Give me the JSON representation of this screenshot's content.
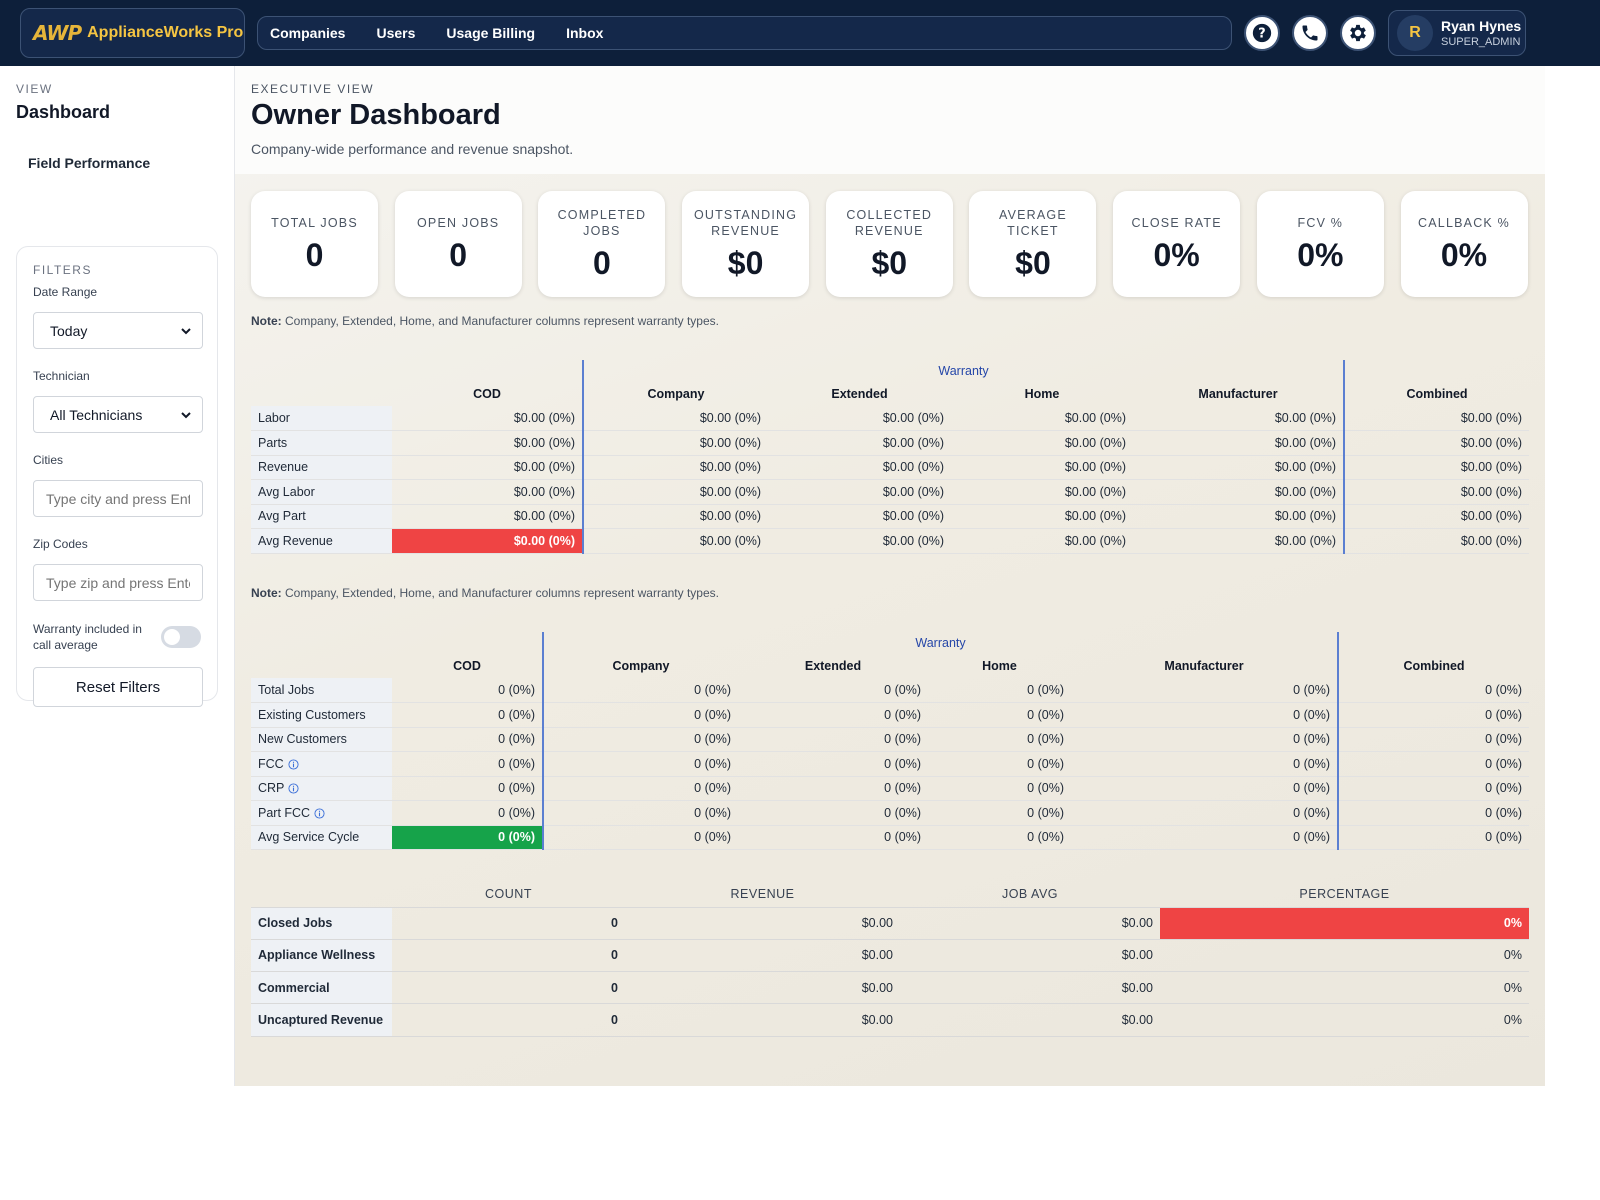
{
  "header": {
    "logo_mark": "AWP",
    "logo_text": "ApplianceWorks Pro",
    "nav": [
      "Companies",
      "Users",
      "Usage Billing",
      "Inbox"
    ],
    "icons": [
      "help-circle-icon",
      "phone-icon",
      "gear-icon"
    ],
    "user": {
      "initial": "R",
      "name": "Ryan Hynes",
      "role": "SUPER_ADMIN"
    }
  },
  "sidebar": {
    "view_label": "VIEW",
    "view_title": "Dashboard",
    "link": "Field Performance",
    "filters": {
      "heading": "FILTERS",
      "date_range_label": "Date Range",
      "date_range_value": "Today",
      "technician_label": "Technician",
      "technician_value": "All Technicians",
      "cities_label": "Cities",
      "cities_placeholder": "Type city and press Enter",
      "zip_label": "Zip Codes",
      "zip_placeholder": "Type zip and press Enter",
      "warranty_toggle_label": "Warranty included in call average",
      "warranty_toggle_on": false,
      "reset_label": "Reset Filters"
    }
  },
  "main": {
    "kicker": "EXECUTIVE VIEW",
    "title": "Owner Dashboard",
    "subtitle": "Company-wide performance and revenue snapshot.",
    "kpis": [
      {
        "label": "TOTAL JOBS",
        "value": "0"
      },
      {
        "label": "OPEN JOBS",
        "value": "0"
      },
      {
        "label": "COMPLETED JOBS",
        "value": "0"
      },
      {
        "label": "OUTSTANDING REVENUE",
        "value": "$0"
      },
      {
        "label": "COLLECTED REVENUE",
        "value": "$0"
      },
      {
        "label": "AVERAGE TICKET",
        "value": "$0"
      },
      {
        "label": "CLOSE RATE",
        "value": "0%"
      },
      {
        "label": "FCV %",
        "value": "0%"
      },
      {
        "label": "CALLBACK %",
        "value": "0%"
      }
    ],
    "note_bold": "Note:",
    "note_text": " Company, Extended, Home, and Manufacturer columns represent warranty types.",
    "warranty_label": "Warranty",
    "columns": [
      "COD",
      "Company",
      "Extended",
      "Home",
      "Manufacturer",
      "Combined"
    ],
    "revenue_table": {
      "rows": [
        {
          "label": "Labor",
          "cells": [
            "$0.00 (0%)",
            "$0.00 (0%)",
            "$0.00 (0%)",
            "$0.00 (0%)",
            "$0.00 (0%)",
            "$0.00 (0%)"
          ]
        },
        {
          "label": "Parts",
          "cells": [
            "$0.00 (0%)",
            "$0.00 (0%)",
            "$0.00 (0%)",
            "$0.00 (0%)",
            "$0.00 (0%)",
            "$0.00 (0%)"
          ]
        },
        {
          "label": "Revenue",
          "cells": [
            "$0.00 (0%)",
            "$0.00 (0%)",
            "$0.00 (0%)",
            "$0.00 (0%)",
            "$0.00 (0%)",
            "$0.00 (0%)"
          ]
        },
        {
          "label": "Avg Labor",
          "cells": [
            "$0.00 (0%)",
            "$0.00 (0%)",
            "$0.00 (0%)",
            "$0.00 (0%)",
            "$0.00 (0%)",
            "$0.00 (0%)"
          ]
        },
        {
          "label": "Avg Part",
          "cells": [
            "$0.00 (0%)",
            "$0.00 (0%)",
            "$0.00 (0%)",
            "$0.00 (0%)",
            "$0.00 (0%)",
            "$0.00 (0%)"
          ]
        },
        {
          "label": "Avg Revenue",
          "cells": [
            "$0.00 (0%)",
            "$0.00 (0%)",
            "$0.00 (0%)",
            "$0.00 (0%)",
            "$0.00 (0%)",
            "$0.00 (0%)"
          ]
        }
      ]
    },
    "jobs_table": {
      "rows": [
        {
          "label": "Total Jobs",
          "cells": [
            "0 (0%)",
            "0 (0%)",
            "0 (0%)",
            "0 (0%)",
            "0 (0%)",
            "0 (0%)"
          ]
        },
        {
          "label": "Existing Customers",
          "cells": [
            "0 (0%)",
            "0 (0%)",
            "0 (0%)",
            "0 (0%)",
            "0 (0%)",
            "0 (0%)"
          ]
        },
        {
          "label": "New Customers",
          "cells": [
            "0 (0%)",
            "0 (0%)",
            "0 (0%)",
            "0 (0%)",
            "0 (0%)",
            "0 (0%)"
          ]
        },
        {
          "label": "FCC",
          "cells": [
            "0 (0%)",
            "0 (0%)",
            "0 (0%)",
            "0 (0%)",
            "0 (0%)",
            "0 (0%)"
          ]
        },
        {
          "label": "CRP",
          "cells": [
            "0 (0%)",
            "0 (0%)",
            "0 (0%)",
            "0 (0%)",
            "0 (0%)",
            "0 (0%)"
          ]
        },
        {
          "label": "Part FCC",
          "cells": [
            "0 (0%)",
            "0 (0%)",
            "0 (0%)",
            "0 (0%)",
            "0 (0%)",
            "0 (0%)"
          ]
        },
        {
          "label": "Avg Service Cycle",
          "cells": [
            "0 (0%)",
            "0 (0%)",
            "0 (0%)",
            "0 (0%)",
            "0 (0%)",
            "0 (0%)"
          ]
        }
      ]
    },
    "summary": {
      "headers": [
        "COUNT",
        "REVENUE",
        "JOB AVG",
        "PERCENTAGE"
      ],
      "rows": [
        {
          "label": "Closed Jobs",
          "count": "0",
          "revenue": "$0.00",
          "avg": "$0.00",
          "pct": "0%"
        },
        {
          "label": "Appliance Wellness",
          "count": "0",
          "revenue": "$0.00",
          "avg": "$0.00",
          "pct": "0%"
        },
        {
          "label": "Commercial",
          "count": "0",
          "revenue": "$0.00",
          "avg": "$0.00",
          "pct": "0%"
        },
        {
          "label": "Uncaptured Revenue",
          "count": "0",
          "revenue": "$0.00",
          "avg": "$0.00",
          "pct": "0%"
        }
      ]
    }
  }
}
